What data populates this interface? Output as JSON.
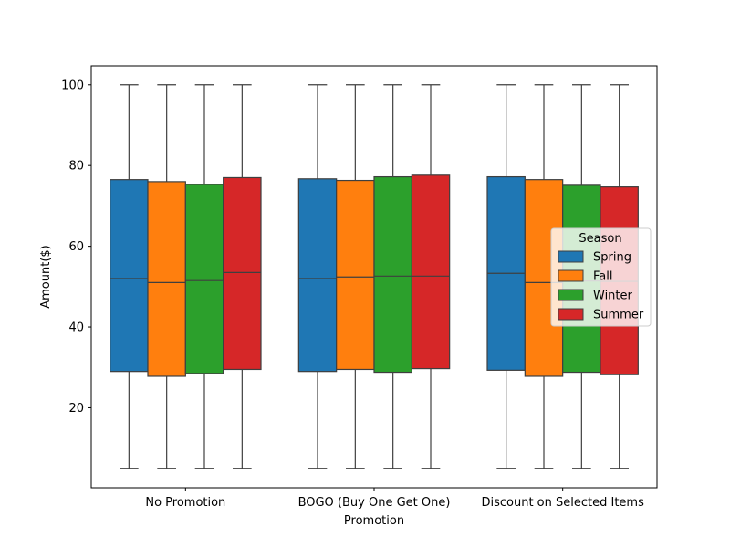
{
  "chart_data": {
    "type": "box",
    "title": "",
    "xlabel": "Promotion",
    "ylabel": "Amount($)",
    "ylim": [
      0.2,
      104.7
    ],
    "yticks": [
      20,
      40,
      60,
      80,
      100
    ],
    "categories": [
      "No Promotion",
      "BOGO (Buy One Get One)",
      "Discount on Selected Items"
    ],
    "legend": {
      "title": "Season",
      "placement": "center-right"
    },
    "series": [
      {
        "name": "Spring",
        "color": "#1f77b4",
        "boxes": [
          {
            "min": 5,
            "q1": 29.0,
            "median": 52.0,
            "q3": 76.5,
            "max": 100
          },
          {
            "min": 5,
            "q1": 29.0,
            "median": 52.0,
            "q3": 76.7,
            "max": 100
          },
          {
            "min": 5,
            "q1": 29.3,
            "median": 53.3,
            "q3": 77.2,
            "max": 100
          }
        ]
      },
      {
        "name": "Fall",
        "color": "#ff7f0e",
        "boxes": [
          {
            "min": 5,
            "q1": 27.8,
            "median": 51.0,
            "q3": 76.0,
            "max": 100
          },
          {
            "min": 5,
            "q1": 29.5,
            "median": 52.4,
            "q3": 76.3,
            "max": 100
          },
          {
            "min": 5,
            "q1": 27.8,
            "median": 51.0,
            "q3": 76.5,
            "max": 100
          }
        ]
      },
      {
        "name": "Winter",
        "color": "#2ca02c",
        "boxes": [
          {
            "min": 5,
            "q1": 28.5,
            "median": 51.5,
            "q3": 75.3,
            "max": 100
          },
          {
            "min": 5,
            "q1": 28.8,
            "median": 52.6,
            "q3": 77.2,
            "max": 100
          },
          {
            "min": 5,
            "q1": 28.8,
            "median": 51.4,
            "q3": 75.1,
            "max": 100
          }
        ]
      },
      {
        "name": "Summer",
        "color": "#d62728",
        "boxes": [
          {
            "min": 5,
            "q1": 29.5,
            "median": 53.5,
            "q3": 77.0,
            "max": 100
          },
          {
            "min": 5,
            "q1": 29.7,
            "median": 52.6,
            "q3": 77.6,
            "max": 100
          },
          {
            "min": 5,
            "q1": 28.2,
            "median": 51.3,
            "q3": 74.7,
            "max": 100
          }
        ]
      }
    ]
  }
}
